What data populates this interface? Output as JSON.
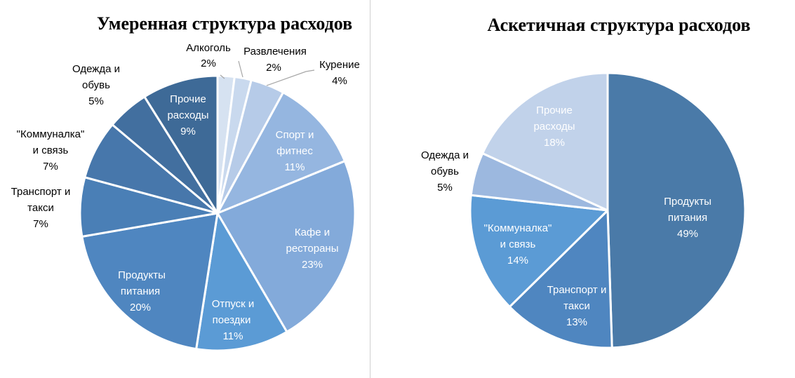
{
  "chart_data": [
    {
      "type": "pie",
      "title": "Умеренная структура расходов",
      "slices": [
        {
          "label": "Алкоголь",
          "value": 2,
          "color": "#d6e2f1"
        },
        {
          "label": "Развлечения",
          "value": 2,
          "color": "#c9d9ee"
        },
        {
          "label": "Курение",
          "value": 4,
          "color": "#b6cbe8"
        },
        {
          "label": "Спорт и фитнес",
          "value": 11,
          "color": "#95b6e0"
        },
        {
          "label": "Кафе и рестораны",
          "value": 23,
          "color": "#83aada"
        },
        {
          "label": "Отпуск и поездки",
          "value": 11,
          "color": "#5b9bd5"
        },
        {
          "label": "Продукты питания",
          "value": 20,
          "color": "#4f86c0"
        },
        {
          "label": "Транспорт и такси",
          "value": 7,
          "color": "#4a7fb6"
        },
        {
          "label": "\"Коммуналка\" и связь",
          "value": 7,
          "color": "#4777ab"
        },
        {
          "label": "Одежда и обувь",
          "value": 5,
          "color": "#426f9f"
        },
        {
          "label": "Прочие расходы",
          "value": 9,
          "color": "#3e6a97"
        }
      ]
    },
    {
      "type": "pie",
      "title": "Аскетичная структура расходов",
      "slices": [
        {
          "label": "Продукты питания",
          "value": 49,
          "color": "#4a7aa8"
        },
        {
          "label": "Транспорт и такси",
          "value": 13,
          "color": "#4f86c0"
        },
        {
          "label": "\"Коммуналка\" и связь",
          "value": 14,
          "color": "#5b9bd5"
        },
        {
          "label": "Одежда и обувь",
          "value": 5,
          "color": "#9cb8df"
        },
        {
          "label": "Прочие расходы",
          "value": 18,
          "color": "#c1d2ea"
        }
      ]
    }
  ]
}
